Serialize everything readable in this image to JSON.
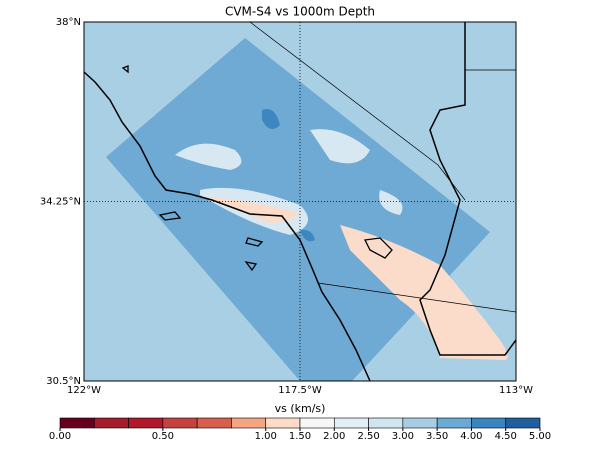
{
  "map": {
    "title": "CVM-S4 vs 1000m Depth",
    "lonlim": [
      -122,
      -113
    ],
    "latlim": [
      30.5,
      38
    ],
    "lon_ticks": [
      {
        "value": -122,
        "label": "122°W"
      },
      {
        "value": -117.5,
        "label": "117.5°W"
      },
      {
        "value": -113,
        "label": "113°W"
      }
    ],
    "lat_ticks": [
      {
        "value": 38,
        "label": "38°N"
      },
      {
        "value": 34.25,
        "label": "34.25°N"
      },
      {
        "value": 30.5,
        "label": "30.5°N"
      }
    ],
    "grid": true
  },
  "colorbar": {
    "label": "vs (km/s)",
    "boundaries": [
      0,
      0.2,
      0.4,
      0.5,
      0.6,
      0.8,
      1.0,
      1.5,
      2.0,
      2.5,
      3.0,
      3.5,
      4.0,
      4.5,
      5.0
    ],
    "colors": [
      "#67001f",
      "#a51c2c",
      "#b2182b",
      "#c6423e",
      "#d6604d",
      "#f4a582",
      "#fddbc7",
      "#f7f7f7",
      "#e3eef5",
      "#d1e5f0",
      "#a6cde3",
      "#6aaad4",
      "#3a84bf",
      "#1f5fa0",
      "#053061"
    ],
    "ticks": [
      {
        "value": 0,
        "label": "0.00"
      },
      {
        "value": 0.5,
        "label": "0.50"
      },
      {
        "value": 1.0,
        "label": "1.00"
      },
      {
        "value": 1.5,
        "label": "1.50"
      },
      {
        "value": 2.0,
        "label": "2.00"
      },
      {
        "value": 2.5,
        "label": "2.50"
      },
      {
        "value": 3.0,
        "label": "3.00"
      },
      {
        "value": 3.5,
        "label": "3.50"
      },
      {
        "value": 4.0,
        "label": "4.00"
      },
      {
        "value": 4.5,
        "label": "4.50"
      },
      {
        "value": 5.0,
        "label": "5.00"
      }
    ]
  }
}
